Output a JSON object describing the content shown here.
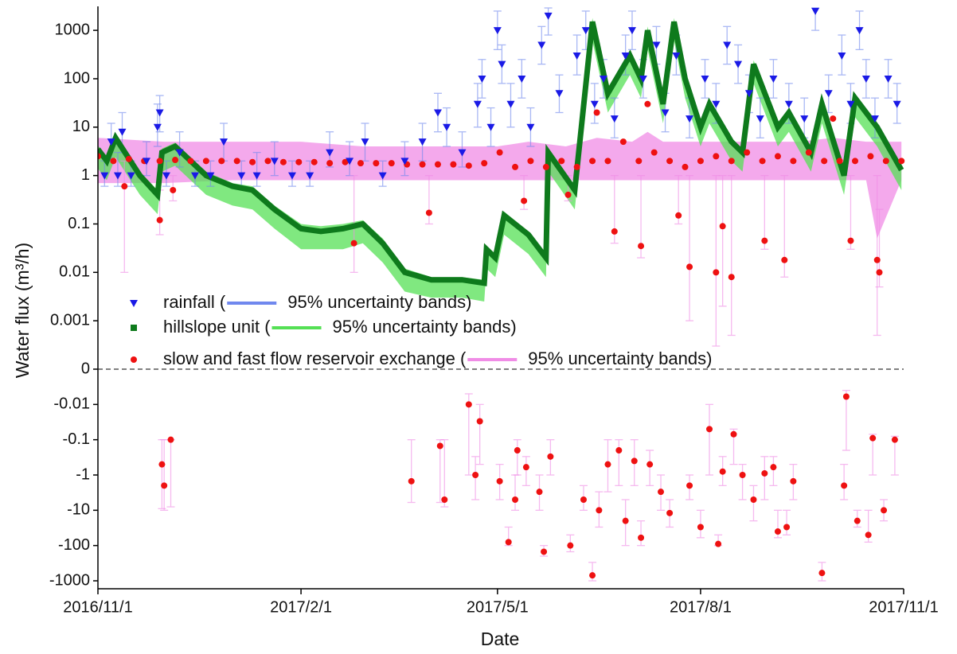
{
  "chart_data": {
    "type": "scatter",
    "xlabel": "Date",
    "ylabel": "Water flux (m³/h)",
    "yscale": "log",
    "xlim": [
      "2016/11/1",
      "2017/11/1"
    ],
    "xticks": [
      "2016/11/1",
      "2017/2/1",
      "2017/5/1",
      "2017/8/1",
      "2017/11/1"
    ],
    "ylim": [
      -1680,
      2900
    ],
    "yticks": [
      1000,
      100,
      10,
      1,
      0.1,
      0.01,
      0.001,
      0,
      -0.01,
      -0.1,
      -1,
      -10,
      -100,
      -1000
    ],
    "series": [
      {
        "name": "rainfall (",
        "color": "#1a1ae6",
        "marker": "triangle-down",
        "x": [
          "2016/11/4",
          "2016/11/7",
          "2016/11/10",
          "2016/11/12",
          "2016/11/16",
          "2016/11/23",
          "2016/11/28",
          "2016/11/29",
          "2016/12/2",
          "2016/12/8",
          "2016/12/15",
          "2016/12/22",
          "2016/12/28",
          "2017/1/5",
          "2017/1/12",
          "2017/1/20",
          "2017/1/28",
          "2017/2/5",
          "2017/2/14",
          "2017/2/23",
          "2017/3/2",
          "2017/3/10",
          "2017/3/20",
          "2017/3/28",
          "2017/4/4",
          "2017/4/8",
          "2017/4/15",
          "2017/4/22",
          "2017/4/24",
          "2017/4/28",
          "2017/5/1",
          "2017/5/3",
          "2017/5/7",
          "2017/5/12",
          "2017/5/16",
          "2017/5/21",
          "2017/5/24",
          "2017/5/29",
          "2017/6/6",
          "2017/6/10",
          "2017/6/14",
          "2017/6/18",
          "2017/6/23",
          "2017/6/28",
          "2017/7/1",
          "2017/7/6",
          "2017/7/12",
          "2017/7/16",
          "2017/7/21",
          "2017/7/27",
          "2017/8/3",
          "2017/8/8",
          "2017/8/13",
          "2017/8/18",
          "2017/8/23",
          "2017/8/28",
          "2017/9/3",
          "2017/9/10",
          "2017/9/17",
          "2017/9/22",
          "2017/9/28",
          "2017/10/4",
          "2017/10/8",
          "2017/10/12",
          "2017/10/15",
          "2017/10/19",
          "2017/10/25",
          "2017/10/29"
        ],
        "values": [
          1,
          5,
          1,
          8,
          1,
          2,
          10,
          20,
          1,
          3,
          1,
          1,
          5,
          1,
          1,
          2,
          1,
          1,
          3,
          2,
          5,
          1,
          2,
          5,
          20,
          10,
          3,
          30,
          100,
          10,
          1000,
          200,
          30,
          100,
          10,
          500,
          2000,
          50,
          300,
          1000,
          30,
          100,
          15,
          300,
          1000,
          100,
          500,
          20,
          300,
          15,
          100,
          30,
          500,
          200,
          50,
          15,
          100,
          30,
          15,
          2500,
          50,
          300,
          30,
          1000,
          100,
          15,
          100,
          30
        ],
        "error_lower": [
          0.6,
          2,
          0.6,
          3,
          0.6,
          1,
          4,
          8,
          0.6,
          1.5,
          0.6,
          0.6,
          2,
          0.6,
          0.6,
          1,
          0.6,
          0.6,
          1.5,
          1,
          2,
          0.6,
          1,
          2,
          8,
          4,
          1.5,
          10,
          40,
          4,
          400,
          80,
          10,
          40,
          4,
          200,
          800,
          20,
          120,
          400,
          12,
          40,
          6,
          120,
          400,
          40,
          200,
          8,
          120,
          6,
          40,
          12,
          200,
          80,
          20,
          6,
          40,
          12,
          6,
          1000,
          20,
          120,
          12,
          400,
          40,
          6,
          40,
          12
        ],
        "error_upper": [
          2,
          12,
          3,
          20,
          2,
          5,
          30,
          45,
          2,
          8,
          2,
          2,
          12,
          2,
          3,
          5,
          2,
          2,
          8,
          5,
          12,
          2,
          5,
          12,
          50,
          25,
          8,
          80,
          250,
          25,
          2500,
          500,
          80,
          250,
          25,
          1200,
          2900,
          120,
          800,
          2500,
          80,
          250,
          40,
          800,
          2500,
          250,
          1200,
          50,
          800,
          40,
          250,
          80,
          1200,
          500,
          120,
          40,
          250,
          80,
          40,
          2900,
          120,
          800,
          80,
          2500,
          250,
          40,
          250,
          80
        ],
        "band": {
          "name": "95% uncertainty bands)",
          "color": "#7088ee"
        }
      },
      {
        "name": "hillslope unit (",
        "color": "#0e7a1c",
        "marker": "square",
        "x": [
          "2016/11/1",
          "2016/11/5",
          "2016/11/9",
          "2016/11/20",
          "2016/11/28",
          "2016/11/30",
          "2016/12/6",
          "2016/12/20",
          "2017/1/1",
          "2017/1/10",
          "2017/1/20",
          "2017/2/1",
          "2017/2/10",
          "2017/2/20",
          "2017/3/1",
          "2017/3/10",
          "2017/3/20",
          "2017/4/1",
          "2017/4/15",
          "2017/4/25",
          "2017/4/26",
          "2017/4/30",
          "2017/5/4",
          "2017/5/15",
          "2017/5/23",
          "2017/5/24",
          "2017/6/5",
          "2017/6/13",
          "2017/6/20",
          "2017/6/30",
          "2017/7/5",
          "2017/7/8",
          "2017/7/15",
          "2017/7/20",
          "2017/7/25",
          "2017/8/1",
          "2017/8/5",
          "2017/8/15",
          "2017/8/20",
          "2017/8/25",
          "2017/9/5",
          "2017/9/10",
          "2017/9/20",
          "2017/9/25",
          "2017/10/5",
          "2017/10/10",
          "2017/10/20",
          "2017/10/31"
        ],
        "values": [
          3.5,
          2,
          6,
          1,
          0.4,
          3,
          4,
          1,
          0.6,
          0.5,
          0.2,
          0.08,
          0.07,
          0.08,
          0.1,
          0.04,
          0.01,
          0.007,
          0.007,
          0.006,
          0.03,
          0.02,
          0.15,
          0.06,
          0.02,
          3,
          0.5,
          1500,
          50,
          300,
          100,
          1000,
          30,
          1500,
          100,
          10,
          30,
          5,
          3,
          200,
          10,
          20,
          3,
          30,
          1,
          40,
          10,
          1.3
        ],
        "band": {
          "name": "95% uncertainty bands)",
          "color": "#55e055",
          "lower": [
            1.4,
            0.8,
            2.4,
            0.4,
            0.16,
            1.2,
            1.6,
            0.4,
            0.24,
            0.2,
            0.08,
            0.03,
            0.03,
            0.03,
            0.04,
            0.016,
            0.004,
            0.003,
            0.003,
            0.0025,
            0.012,
            0.008,
            0.06,
            0.024,
            0.008,
            1.2,
            0.2,
            600,
            20,
            120,
            40,
            400,
            12,
            600,
            40,
            4,
            12,
            2,
            1.2,
            80,
            4,
            8,
            1.2,
            12,
            0.4,
            16,
            4,
            0.5
          ],
          "upper": [
            4.2,
            2.4,
            7.2,
            1.2,
            0.5,
            3.6,
            4.8,
            1.2,
            0.7,
            0.6,
            0.24,
            0.1,
            0.09,
            0.1,
            0.12,
            0.05,
            0.012,
            0.008,
            0.008,
            0.007,
            0.036,
            0.024,
            0.18,
            0.07,
            0.024,
            3.6,
            0.6,
            1800,
            60,
            360,
            120,
            1200,
            36,
            1800,
            120,
            12,
            36,
            6,
            3.6,
            240,
            12,
            24,
            3.6,
            36,
            1.2,
            48,
            12,
            1.6
          ]
        }
      },
      {
        "name": "slow and fast flow reservoir exchange (",
        "color": "#ee1111",
        "marker": "circle",
        "x": [
          "2016/11/1",
          "2016/11/8",
          "2016/11/15",
          "2016/11/22",
          "2016/11/29",
          "2016/12/6",
          "2016/12/13",
          "2016/12/20",
          "2016/12/27",
          "2017/1/3",
          "2017/1/10",
          "2017/1/17",
          "2017/1/24",
          "2017/1/31",
          "2017/2/7",
          "2017/2/14",
          "2017/2/21",
          "2017/2/28",
          "2017/3/7",
          "2017/3/14",
          "2017/3/21",
          "2017/3/28",
          "2017/4/4",
          "2017/4/11",
          "2017/4/18",
          "2017/4/25",
          "2017/5/2",
          "2017/5/9",
          "2017/5/16",
          "2017/5/23",
          "2017/5/30",
          "2017/6/6",
          "2017/6/13",
          "2017/6/15",
          "2017/6/20",
          "2017/6/27",
          "2017/7/4",
          "2017/7/8",
          "2017/7/11",
          "2017/7/18",
          "2017/7/25",
          "2017/8/1",
          "2017/8/8",
          "2017/8/15",
          "2017/8/22",
          "2017/8/29",
          "2017/9/5",
          "2017/9/12",
          "2017/9/19",
          "2017/9/26",
          "2017/9/30",
          "2017/10/3",
          "2017/10/10",
          "2017/10/17",
          "2017/10/24",
          "2017/10/31",
          "2016/11/13",
          "2016/11/29",
          "2016/12/5",
          "2017/2/25",
          "2017/3/31",
          "2017/5/13",
          "2017/6/2",
          "2017/6/23",
          "2017/7/5",
          "2017/7/22",
          "2017/7/27",
          "2017/8/8",
          "2017/8/11",
          "2017/8/15",
          "2017/8/30",
          "2017/9/8",
          "2017/10/8",
          "2017/10/20",
          "2017/10/21",
          "2016/11/30",
          "2016/12/1",
          "2016/12/4",
          "2017/3/23",
          "2017/4/5",
          "2017/4/7",
          "2017/4/18",
          "2017/4/21",
          "2017/4/23",
          "2017/5/2",
          "2017/5/6",
          "2017/5/9",
          "2017/5/10",
          "2017/5/14",
          "2017/5/20",
          "2017/5/22",
          "2017/5/25",
          "2017/6/3",
          "2017/6/9",
          "2017/6/13",
          "2017/6/16",
          "2017/6/20",
          "2017/6/25",
          "2017/6/28",
          "2017/7/2",
          "2017/7/5",
          "2017/7/9",
          "2017/7/14",
          "2017/7/18",
          "2017/7/27",
          "2017/8/1",
          "2017/8/5",
          "2017/8/9",
          "2017/8/11",
          "2017/8/16",
          "2017/8/20",
          "2017/8/25",
          "2017/8/30",
          "2017/9/3",
          "2017/9/5",
          "2017/9/9",
          "2017/9/12",
          "2017/9/25",
          "2017/10/5",
          "2017/10/6",
          "2017/10/11",
          "2017/10/16",
          "2017/10/18",
          "2017/10/23",
          "2017/10/28"
        ],
        "values": [
          2.5,
          2,
          2.2,
          2,
          2,
          2.1,
          2,
          2,
          2,
          2,
          1.9,
          2,
          1.9,
          1.9,
          1.9,
          1.8,
          1.9,
          1.8,
          1.8,
          1.8,
          1.7,
          1.7,
          1.7,
          1.7,
          1.6,
          1.8,
          3,
          1.5,
          2,
          1.5,
          2,
          1.5,
          2,
          20,
          2,
          5,
          2,
          30,
          3,
          2,
          1.5,
          2,
          2.5,
          2,
          3,
          2,
          2.5,
          2,
          3,
          2,
          15,
          2,
          2,
          2.5,
          2,
          2,
          0.6,
          0.12,
          0.5,
          0.04,
          0.17,
          0.3,
          0.4,
          0.07,
          0.035,
          0.15,
          0.013,
          0.01,
          0.09,
          0.008,
          0.045,
          0.018,
          0.045,
          0.018,
          0.01,
          -0.5,
          -2,
          -0.1,
          -1.5,
          -0.15,
          -5,
          -0.01,
          -1,
          -0.03,
          -1.5,
          -80,
          -5,
          -0.2,
          -0.6,
          -3,
          -150,
          -0.3,
          -100,
          -5,
          -700,
          -10,
          -0.5,
          -0.2,
          -20,
          -0.4,
          -60,
          -0.5,
          -3,
          -12,
          -2,
          -30,
          -0.05,
          -90,
          -0.8,
          -0.07,
          -1,
          -5,
          -0.9,
          -0.6,
          -40,
          -30,
          -1.5,
          -600,
          -2,
          -0.006,
          -20,
          -50,
          -0.09,
          -10,
          -0.1
        ],
        "error_lower": [
          null,
          null,
          null,
          null,
          null,
          null,
          null,
          null,
          null,
          null,
          null,
          null,
          null,
          null,
          null,
          null,
          null,
          null,
          null,
          null,
          null,
          null,
          null,
          null,
          null,
          null,
          null,
          null,
          null,
          null,
          null,
          null,
          null,
          null,
          null,
          null,
          null,
          null,
          null,
          null,
          null,
          null,
          null,
          null,
          null,
          null,
          null,
          null,
          null,
          null,
          null,
          null,
          null,
          null,
          null,
          null,
          0.01,
          0.06,
          0.3,
          0.01,
          0.1,
          0.2,
          0.3,
          0.04,
          0.02,
          0.1,
          0.001,
          0.0003,
          0.002,
          0.0005,
          0.03,
          0.008,
          0.03,
          0.0005,
          0.005,
          -9,
          -10,
          -8,
          -6,
          -6,
          -8,
          -1,
          -5,
          -0.5,
          -5,
          -100,
          -10,
          -1,
          -2,
          -10,
          -200,
          -1,
          -150,
          -10,
          -1000,
          -30,
          -3,
          -2,
          -100,
          -2,
          -100,
          -2,
          -10,
          -30,
          -5,
          -60,
          -1,
          -100,
          -2,
          -0.5,
          -5,
          -20,
          -5,
          -2,
          -60,
          -50,
          -5,
          -1000,
          -5,
          -0.2,
          -30,
          -80,
          -1,
          -20,
          -1
        ],
        "error_upper": [
          null,
          null,
          null,
          null,
          null,
          null,
          null,
          null,
          null,
          null,
          null,
          null,
          null,
          null,
          null,
          null,
          null,
          null,
          null,
          null,
          null,
          null,
          null,
          null,
          null,
          null,
          null,
          null,
          null,
          null,
          null,
          null,
          null,
          null,
          null,
          null,
          null,
          null,
          null,
          null,
          null,
          null,
          null,
          null,
          null,
          null,
          null,
          null,
          null,
          null,
          null,
          null,
          null,
          null,
          null,
          null,
          2,
          0.5,
          1,
          1,
          1,
          1,
          1,
          1,
          1,
          1,
          1,
          1,
          1,
          1,
          1,
          1,
          1,
          1,
          0.2,
          -0.1,
          -0.1,
          -0.1,
          -0.1,
          -0.1,
          -0.1,
          -0.005,
          -0.3,
          -0.01,
          -0.5,
          -30,
          -1,
          -0.1,
          -0.3,
          -1,
          -100,
          -0.1,
          -50,
          -2,
          -300,
          -3,
          -0.1,
          -0.1,
          -5,
          -0.1,
          -20,
          -0.2,
          -1,
          -5,
          -1,
          -10,
          -0.01,
          -50,
          -0.3,
          -0.05,
          -0.5,
          -2,
          -0.3,
          -0.3,
          -10,
          -10,
          -0.5,
          -300,
          -0.5,
          -0.004,
          -10,
          -10,
          -0.07,
          -5,
          -0.08
        ],
        "band": {
          "name": "95% uncertainty bands)",
          "color": "#f08ce6",
          "x": [
            "2016/11/1",
            "2016/12/1",
            "2017/1/1",
            "2017/2/1",
            "2017/3/1",
            "2017/4/1",
            "2017/5/1",
            "2017/5/15",
            "2017/6/1",
            "2017/6/15",
            "2017/7/1",
            "2017/7/8",
            "2017/7/15",
            "2017/8/1",
            "2017/8/15",
            "2017/9/1",
            "2017/9/15",
            "2017/9/30",
            "2017/10/15",
            "2017/10/20",
            "2017/10/31"
          ],
          "lower": [
            0.7,
            0.7,
            0.8,
            0.8,
            0.8,
            0.8,
            0.8,
            0.8,
            0.8,
            0.8,
            0.8,
            0.8,
            0.8,
            0.8,
            0.8,
            0.8,
            0.8,
            0.8,
            0.8,
            0.05,
            0.8
          ],
          "upper": [
            6,
            5,
            5,
            5,
            4,
            4,
            4,
            5,
            4,
            6,
            5,
            8,
            5,
            5,
            5,
            5,
            5,
            6,
            5,
            5,
            5
          ]
        }
      }
    ]
  }
}
